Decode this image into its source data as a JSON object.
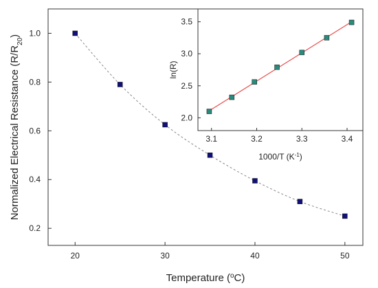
{
  "chart_data": [
    {
      "type": "scatter",
      "xlabel": "Temperature (",
      "xlabel_sup": "o",
      "xlabel_tail": "C)",
      "ylabel": "Normalized Electrical Resistance (R/R",
      "ylabel_sub": "20",
      "ylabel_tail": ")",
      "xlim": [
        17,
        52
      ],
      "ylim": [
        0.13,
        1.1
      ],
      "x_ticks": [
        20,
        30,
        40,
        50
      ],
      "y_ticks": [
        0.2,
        0.4,
        0.6,
        0.8,
        1.0
      ],
      "x_tick_labels": [
        "20",
        "30",
        "40",
        "50"
      ],
      "y_tick_labels": [
        "0.2",
        "0.4",
        "0.6",
        "0.8",
        "1.0"
      ],
      "series": [
        {
          "x": [
            20,
            25,
            30,
            35,
            40,
            45,
            50
          ],
          "y": [
            1.0,
            0.79,
            0.625,
            0.5,
            0.395,
            0.31,
            0.25
          ],
          "marker_color": "#10107a",
          "line_style": "dashed",
          "line_color": "#888888"
        }
      ]
    },
    {
      "type": "scatter",
      "inset": true,
      "xlabel": "1000/T (K",
      "xlabel_sup": "-1",
      "xlabel_tail": ")",
      "ylabel": "ln(R)",
      "xlim": [
        3.07,
        3.435
      ],
      "ylim": [
        1.8,
        3.7
      ],
      "x_ticks": [
        3.1,
        3.2,
        3.3,
        3.4
      ],
      "y_ticks": [
        2.0,
        2.5,
        3.0,
        3.5
      ],
      "x_tick_labels": [
        "3.1",
        "3.2",
        "3.3",
        "3.4"
      ],
      "y_tick_labels": [
        "2.0",
        "2.5",
        "3.0",
        "3.5"
      ],
      "series": [
        {
          "x": [
            3.095,
            3.145,
            3.195,
            3.245,
            3.3,
            3.355,
            3.41
          ],
          "y": [
            2.1,
            2.32,
            2.56,
            2.79,
            3.02,
            3.25,
            3.49
          ],
          "marker_color": "#2a8a7c",
          "fit_color": "#e84a4a"
        }
      ]
    }
  ]
}
